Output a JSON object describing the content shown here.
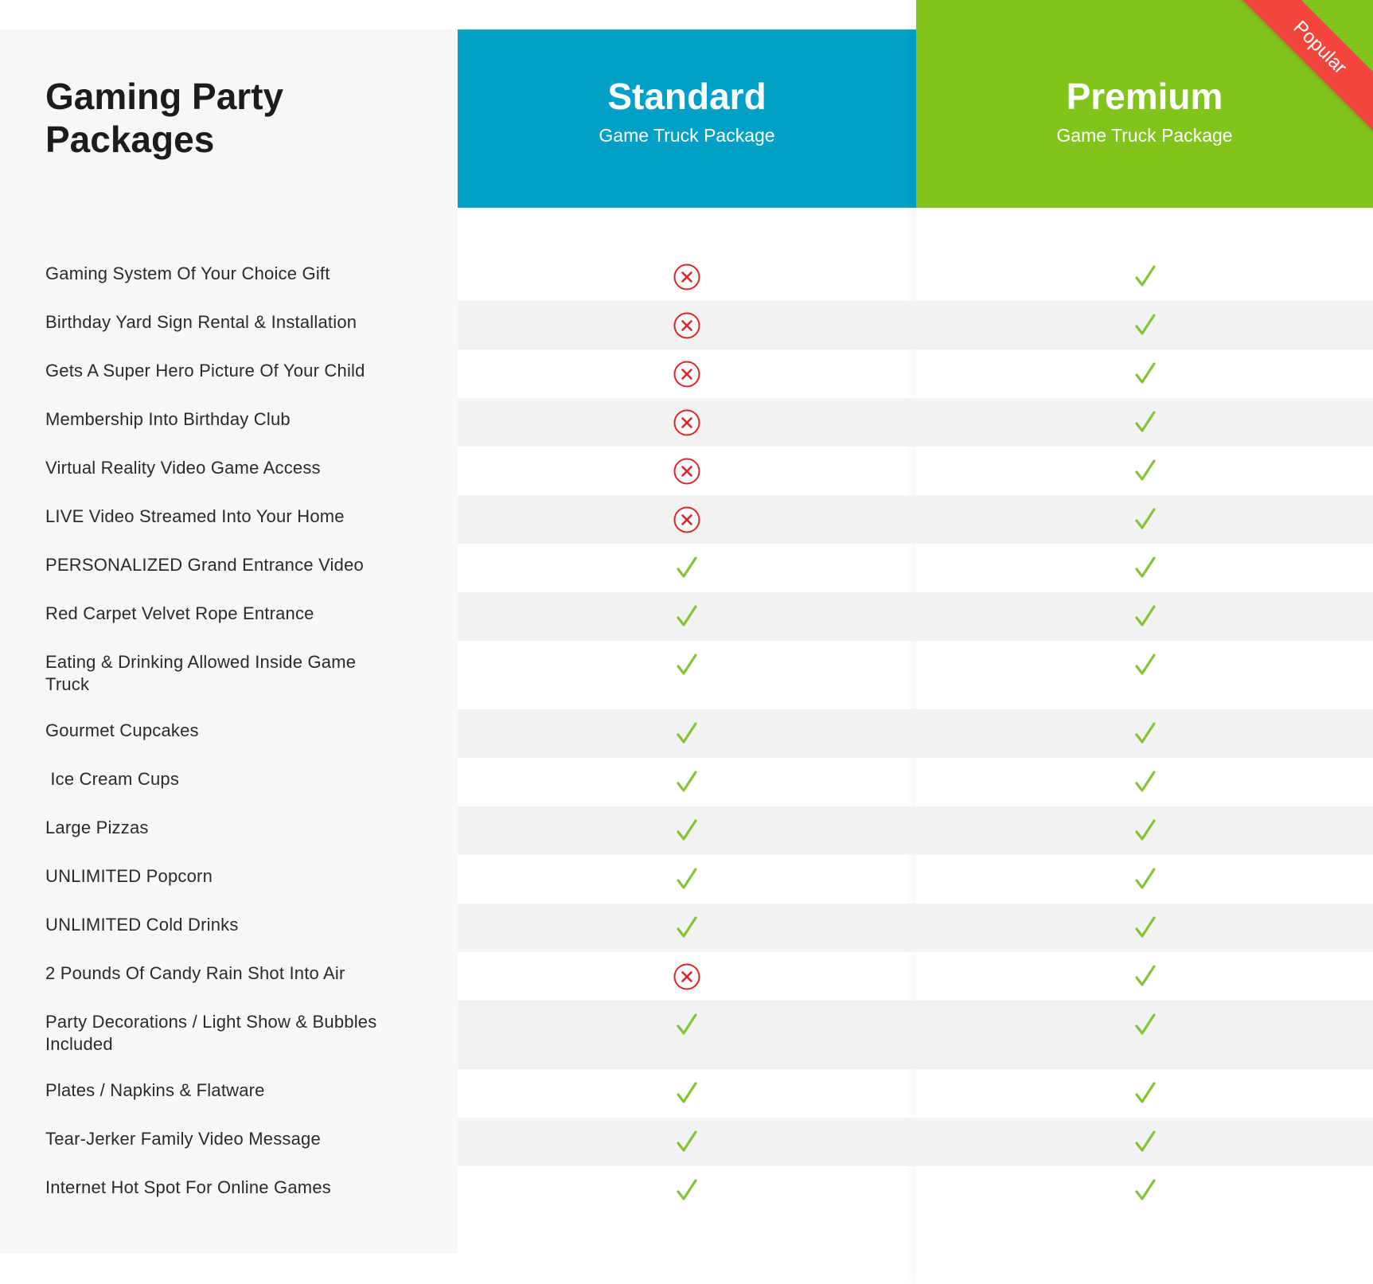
{
  "title": "Gaming Party Packages",
  "plans": [
    {
      "name": "Standard",
      "subtitle": "Game Truck Package",
      "color": "#02a0c7"
    },
    {
      "name": "Premium",
      "subtitle": "Game Truck Package",
      "color": "#80c41c",
      "ribbon": "Popular"
    }
  ],
  "colors": {
    "check": "#86c23a",
    "cross": "#e02424",
    "ribbon": "#f2463d"
  },
  "features": [
    {
      "label": "Gaming System Of Your Choice Gift",
      "standard": false,
      "premium": true
    },
    {
      "label": "Birthday Yard Sign Rental & Installation",
      "standard": false,
      "premium": true
    },
    {
      "label": "Gets A Super Hero Picture Of Your Child",
      "standard": false,
      "premium": true
    },
    {
      "label": "Membership Into Birthday Club",
      "standard": false,
      "premium": true
    },
    {
      "label": "Virtual Reality Video Game Access",
      "standard": false,
      "premium": true
    },
    {
      "label": "LIVE Video Streamed Into Your Home",
      "standard": false,
      "premium": true
    },
    {
      "label": "PERSONALIZED Grand Entrance Video",
      "standard": true,
      "premium": true
    },
    {
      "label": "Red Carpet Velvet Rope Entrance",
      "standard": true,
      "premium": true
    },
    {
      "label": "Eating & Drinking Allowed Inside Game Truck",
      "standard": true,
      "premium": true
    },
    {
      "label": "Gourmet Cupcakes",
      "standard": true,
      "premium": true
    },
    {
      "label": " Ice Cream Cups",
      "standard": true,
      "premium": true
    },
    {
      "label": "Large Pizzas",
      "standard": true,
      "premium": true
    },
    {
      "label": "UNLIMITED Popcorn",
      "standard": true,
      "premium": true
    },
    {
      "label": "UNLIMITED Cold Drinks",
      "standard": true,
      "premium": true
    },
    {
      "label": "2 Pounds Of Candy Rain Shot Into Air",
      "standard": false,
      "premium": true
    },
    {
      "label": "Party Decorations / Light Show & Bubbles Included",
      "standard": true,
      "premium": true
    },
    {
      "label": "Plates / Napkins & Flatware",
      "standard": true,
      "premium": true
    },
    {
      "label": "Tear-Jerker Family Video Message",
      "standard": true,
      "premium": true
    },
    {
      "label": "Internet Hot Spot For Online Games",
      "standard": true,
      "premium": true
    }
  ]
}
